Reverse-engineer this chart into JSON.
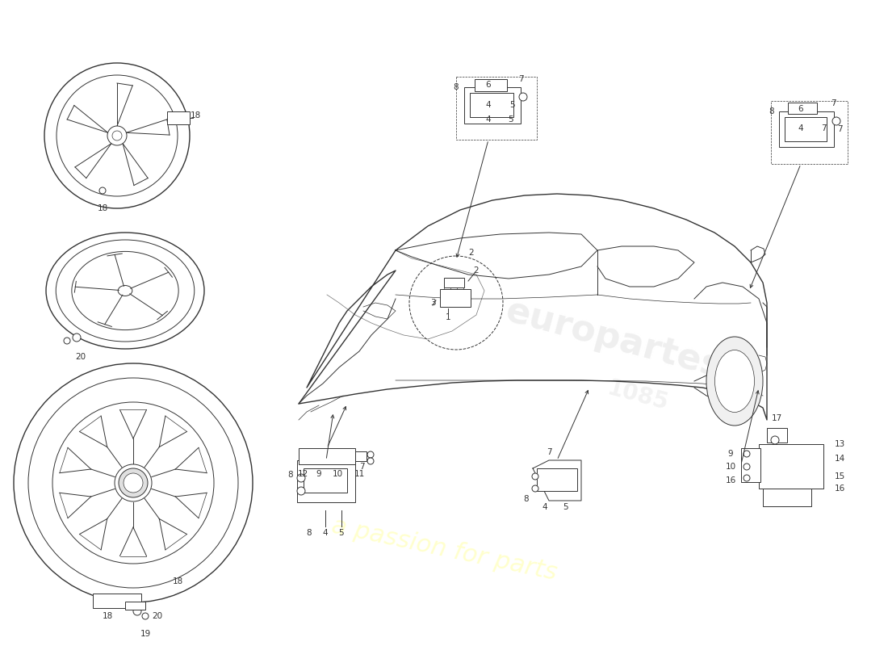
{
  "bg_color": "#ffffff",
  "lc": "#333333",
  "lc_light": "#888888",
  "watermark_color": "#ffffc8",
  "fig_width": 11.0,
  "fig_height": 8.0,
  "dpi": 100,
  "label_fs": 7.5,
  "label_fs_small": 6.5
}
